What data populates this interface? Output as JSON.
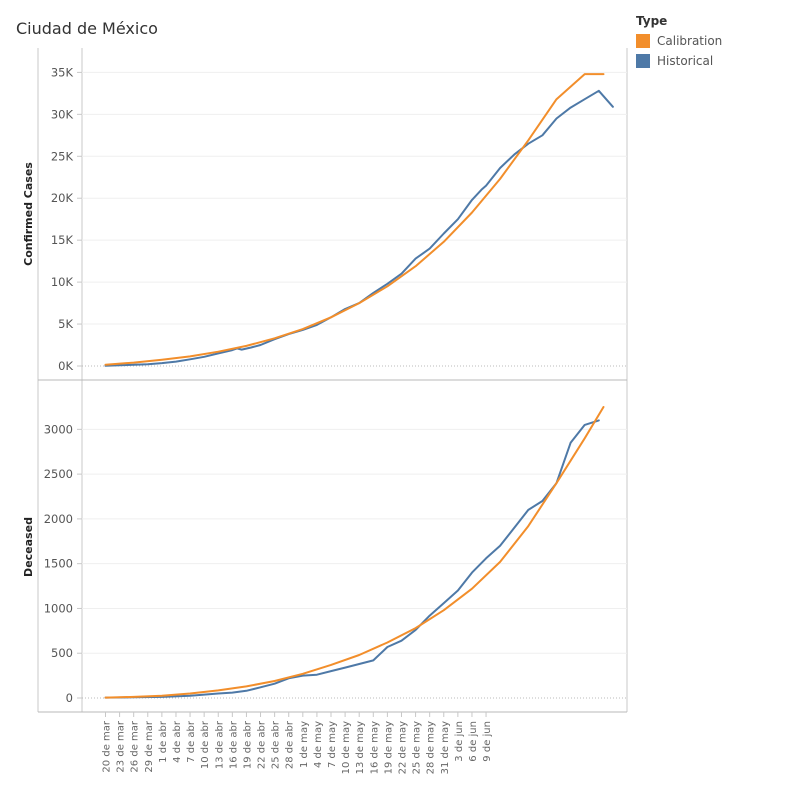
{
  "title": "Ciudad de México",
  "legend": {
    "title": "Type",
    "items": [
      {
        "label": "Calibration",
        "color": "#f28e2b"
      },
      {
        "label": "Historical",
        "color": "#4e79a7"
      }
    ]
  },
  "chart_data": [
    {
      "type": "line",
      "ylabel": "Confirmed Cases",
      "ylim": [
        0,
        36000
      ],
      "yticks": [
        0,
        5000,
        10000,
        15000,
        20000,
        25000,
        30000,
        35000
      ],
      "ytick_labels": [
        "0K",
        "5K",
        "10K",
        "15K",
        "20K",
        "25K",
        "30K",
        "35K"
      ],
      "grid": true,
      "series": [
        {
          "name": "Historical",
          "color": "#4e79a7",
          "x": [
            0,
            3,
            6,
            9,
            12,
            15,
            18,
            21,
            24,
            27,
            28,
            29,
            31,
            33,
            36,
            39,
            42,
            45,
            48,
            51,
            54,
            57,
            60,
            63,
            66,
            69,
            72,
            75,
            78,
            80,
            81,
            84,
            87,
            90,
            93,
            96,
            99,
            102,
            105,
            108
          ],
          "y": [
            20,
            80,
            150,
            220,
            350,
            520,
            800,
            1100,
            1500,
            1900,
            2100,
            1950,
            2200,
            2500,
            3200,
            3800,
            4300,
            4900,
            5800,
            6800,
            7500,
            8700,
            9800,
            11000,
            12800,
            14000,
            15800,
            17500,
            19800,
            21000,
            21500,
            23600,
            25200,
            26500,
            27500,
            29500,
            30800,
            31800,
            32800,
            30900
          ]
        },
        {
          "name": "Calibration",
          "color": "#f28e2b",
          "x": [
            0,
            6,
            12,
            18,
            24,
            30,
            36,
            42,
            48,
            54,
            60,
            66,
            72,
            78,
            84,
            90,
            96,
            102,
            106
          ],
          "y": [
            150,
            400,
            750,
            1150,
            1700,
            2400,
            3300,
            4400,
            5800,
            7500,
            9500,
            11900,
            14800,
            18300,
            22300,
            26900,
            31800,
            34800,
            34800
          ]
        }
      ]
    },
    {
      "type": "line",
      "ylabel": "Deceased",
      "ylim": [
        0,
        3350
      ],
      "yticks": [
        0,
        500,
        1000,
        1500,
        2000,
        2500,
        3000
      ],
      "ytick_labels": [
        "0",
        "500",
        "1000",
        "1500",
        "2000",
        "2500",
        "3000"
      ],
      "grid": true,
      "series": [
        {
          "name": "Historical",
          "color": "#4e79a7",
          "x": [
            0,
            6,
            12,
            18,
            24,
            27,
            30,
            33,
            36,
            39,
            42,
            45,
            48,
            51,
            54,
            57,
            60,
            63,
            66,
            69,
            72,
            75,
            78,
            81,
            84,
            87,
            90,
            93,
            96,
            99,
            102,
            105
          ],
          "y": [
            5,
            8,
            12,
            25,
            50,
            60,
            80,
            120,
            160,
            220,
            250,
            260,
            300,
            340,
            380,
            420,
            570,
            640,
            760,
            920,
            1060,
            1200,
            1400,
            1560,
            1700,
            1900,
            2100,
            2200,
            2400,
            2850,
            3050,
            3100
          ]
        },
        {
          "name": "Calibration",
          "color": "#f28e2b",
          "x": [
            0,
            6,
            12,
            18,
            24,
            30,
            36,
            42,
            48,
            54,
            60,
            66,
            72,
            78,
            84,
            90,
            96,
            102,
            106
          ],
          "y": [
            5,
            12,
            25,
            50,
            85,
            130,
            190,
            270,
            370,
            480,
            620,
            780,
            980,
            1220,
            1520,
            1920,
            2400,
            2900,
            3250
          ]
        }
      ]
    }
  ],
  "x_axis": {
    "x_range": [
      -5,
      111
    ],
    "ticks": [
      {
        "x": 0,
        "label": "20 de mar"
      },
      {
        "x": 3,
        "label": "23 de mar"
      },
      {
        "x": 6,
        "label": "26 de mar"
      },
      {
        "x": 9,
        "label": "29 de mar"
      },
      {
        "x": 12,
        "label": "1 de abr"
      },
      {
        "x": 15,
        "label": "4 de abr"
      },
      {
        "x": 18,
        "label": "7 de abr"
      },
      {
        "x": 21,
        "label": "10 de abr"
      },
      {
        "x": 24,
        "label": "13 de abr"
      },
      {
        "x": 27,
        "label": "16 de abr"
      },
      {
        "x": 30,
        "label": "19 de abr"
      },
      {
        "x": 33,
        "label": "22 de abr"
      },
      {
        "x": 36,
        "label": "25 de abr"
      },
      {
        "x": 39,
        "label": "28 de abr"
      },
      {
        "x": 42,
        "label": "1 de may"
      },
      {
        "x": 45,
        "label": "4 de may"
      },
      {
        "x": 48,
        "label": "7 de may"
      },
      {
        "x": 51,
        "label": "10 de may"
      },
      {
        "x": 54,
        "label": "13 de may"
      },
      {
        "x": 57,
        "label": "16 de may"
      },
      {
        "x": 60,
        "label": "19 de may"
      },
      {
        "x": 63,
        "label": "22 de may"
      },
      {
        "x": 66,
        "label": "25 de may"
      },
      {
        "x": 69,
        "label": "28 de may"
      },
      {
        "x": 72,
        "label": "31 de may"
      },
      {
        "x": 75,
        "label": "3 de jun"
      },
      {
        "x": 78,
        "label": "6 de jun"
      },
      {
        "x": 81,
        "label": "9 de jun"
      }
    ]
  }
}
